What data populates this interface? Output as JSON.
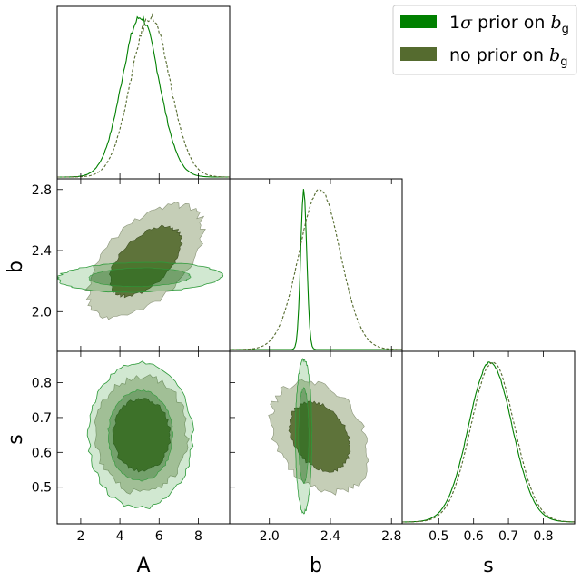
{
  "chart_data": {
    "type": "corner",
    "parameters": [
      "A",
      "b",
      "s"
    ],
    "axis_labels": {
      "A": "A",
      "b": "b",
      "s": "s"
    },
    "ranges": {
      "A": [
        0.8,
        9.6
      ],
      "b": [
        1.74,
        2.87
      ],
      "s": [
        0.395,
        0.89
      ]
    },
    "ticks": {
      "A": [
        {
          "v": 2,
          "label": "2"
        },
        {
          "v": 4,
          "label": "4"
        },
        {
          "v": 6,
          "label": "6"
        },
        {
          "v": 8,
          "label": "8"
        }
      ],
      "b": [
        {
          "v": 2.0,
          "label": "2.0"
        },
        {
          "v": 2.4,
          "label": "2.4"
        },
        {
          "v": 2.8,
          "label": "2.8"
        }
      ],
      "s": [
        {
          "v": 0.5,
          "label": "0.5"
        },
        {
          "v": 0.6,
          "label": "0.6"
        },
        {
          "v": 0.7,
          "label": "0.7"
        },
        {
          "v": 0.8,
          "label": "0.8"
        }
      ]
    },
    "legend": {
      "placement": "top-right",
      "entries": [
        {
          "prefix": "1",
          "greek": "σ",
          "mid": " prior on ",
          "sym": "b",
          "sub": "g",
          "color": "#008000"
        },
        {
          "prefix": "no prior on ",
          "greek": "",
          "mid": "",
          "sym": "b",
          "sub": "g",
          "color": "#556b2f"
        }
      ]
    },
    "series": [
      {
        "name": "1σ prior on b_g",
        "color": "#008000",
        "line": "solid",
        "marginals": {
          "A": {
            "mean": 5.05,
            "sd": 0.95
          },
          "b": {
            "mean": 2.225,
            "sd": 0.02
          },
          "s": {
            "mean": 0.648,
            "sd": 0.062
          }
        },
        "contours": {
          "b_vs_A": {
            "mean": [
              5.0,
              2.225
            ],
            "sd": [
              1.7,
              0.04
            ],
            "rho": 0.1
          },
          "s_vs_A": {
            "mean": [
              5.05,
              0.648
            ],
            "sd": [
              1.08,
              0.085
            ],
            "rho": 0.0
          },
          "s_vs_b": {
            "mean": [
              2.225,
              0.648
            ],
            "sd": [
              0.022,
              0.09
            ],
            "rho": 0.0
          }
        }
      },
      {
        "name": "no prior on b_g",
        "color": "#556b2f",
        "fill_outer": "#c2cbb3",
        "line": "dashed",
        "marginals": {
          "A": {
            "mean": 5.55,
            "sd": 1.0
          },
          "b": {
            "mean": 2.33,
            "sd": 0.135
          },
          "s": {
            "mean": 0.655,
            "sd": 0.062
          }
        },
        "contours": {
          "b_vs_A": {
            "mean": [
              5.3,
              2.33
            ],
            "sd": [
              1.2,
              0.15
            ],
            "rho": 0.55
          },
          "s_vs_A": {
            "mean": [
              5.1,
              0.65
            ],
            "sd": [
              0.95,
              0.068
            ],
            "rho": 0.0
          },
          "s_vs_b": {
            "mean": [
              2.33,
              0.645
            ],
            "sd": [
              0.13,
              0.065
            ],
            "rho": -0.3
          }
        }
      }
    ]
  }
}
